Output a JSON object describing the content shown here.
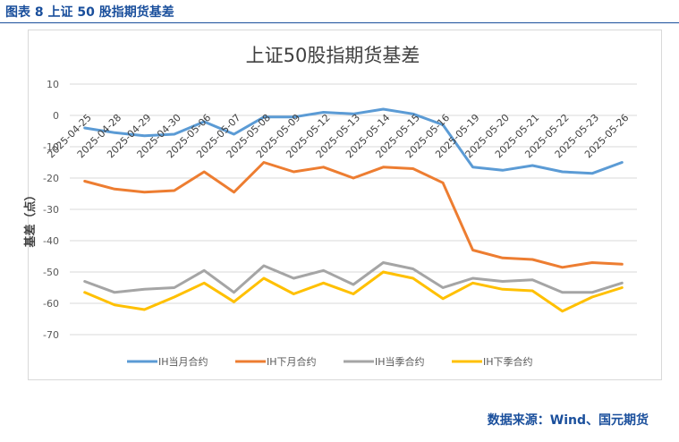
{
  "caption": "图表 8 上证 50 股指期货基差",
  "source": "数据来源：Wind、国元期货",
  "chart_data": {
    "type": "line",
    "title": "上证50股指期货基差",
    "ylabel": "基差（点）",
    "xlabel": "",
    "ylim": [
      -70,
      10
    ],
    "yticks": [
      10,
      0,
      -10,
      -20,
      -30,
      -40,
      -50,
      -60,
      -70
    ],
    "grid": true,
    "legend": "bottom",
    "categories": [
      "2025-04-25",
      "2025-04-28",
      "2025-04-29",
      "2025-04-30",
      "2025-05-06",
      "2025-05-07",
      "2025-05-08",
      "2025-05-09",
      "2025-05-12",
      "2025-05-13",
      "2025-05-14",
      "2025-05-15",
      "2025-05-16",
      "2025-05-19",
      "2025-05-20",
      "2025-05-21",
      "2025-05-22",
      "2025-05-23",
      "2025-05-26"
    ],
    "series": [
      {
        "name": "IH当月合约",
        "color": "#5b9bd5",
        "values": [
          -4,
          -5.5,
          -6.5,
          -6,
          -2,
          -6,
          -0.5,
          -0.5,
          1,
          0.5,
          2,
          0.5,
          -3,
          -16.5,
          -17.5,
          -16,
          -18,
          -18.5,
          -15
        ]
      },
      {
        "name": "IH下月合约",
        "color": "#ed7d31",
        "values": [
          -21,
          -23.5,
          -24.5,
          -24,
          -18,
          -24.5,
          -15,
          -18,
          -16.5,
          -20,
          -16.5,
          -17,
          -21.5,
          -43,
          -45.5,
          -46,
          -48.5,
          -47,
          -47.5
        ]
      },
      {
        "name": "IH当季合约",
        "color": "#a5a5a5",
        "values": [
          -53,
          -56.5,
          -55.5,
          -55,
          -49.5,
          -56.5,
          -48,
          -52,
          -49.5,
          -54,
          -47,
          -49,
          -55,
          -52,
          -53,
          -52.5,
          -56.5,
          -56.5,
          -53.5
        ]
      },
      {
        "name": "IH下季合约",
        "color": "#ffc000",
        "values": [
          -56.5,
          -60.5,
          -62,
          -58,
          -53.5,
          -59.5,
          -52,
          -57,
          -53.5,
          -57,
          -50,
          -52,
          -58.5,
          -53.5,
          -55.5,
          -56,
          -62.5,
          -58,
          -55
        ]
      }
    ]
  }
}
